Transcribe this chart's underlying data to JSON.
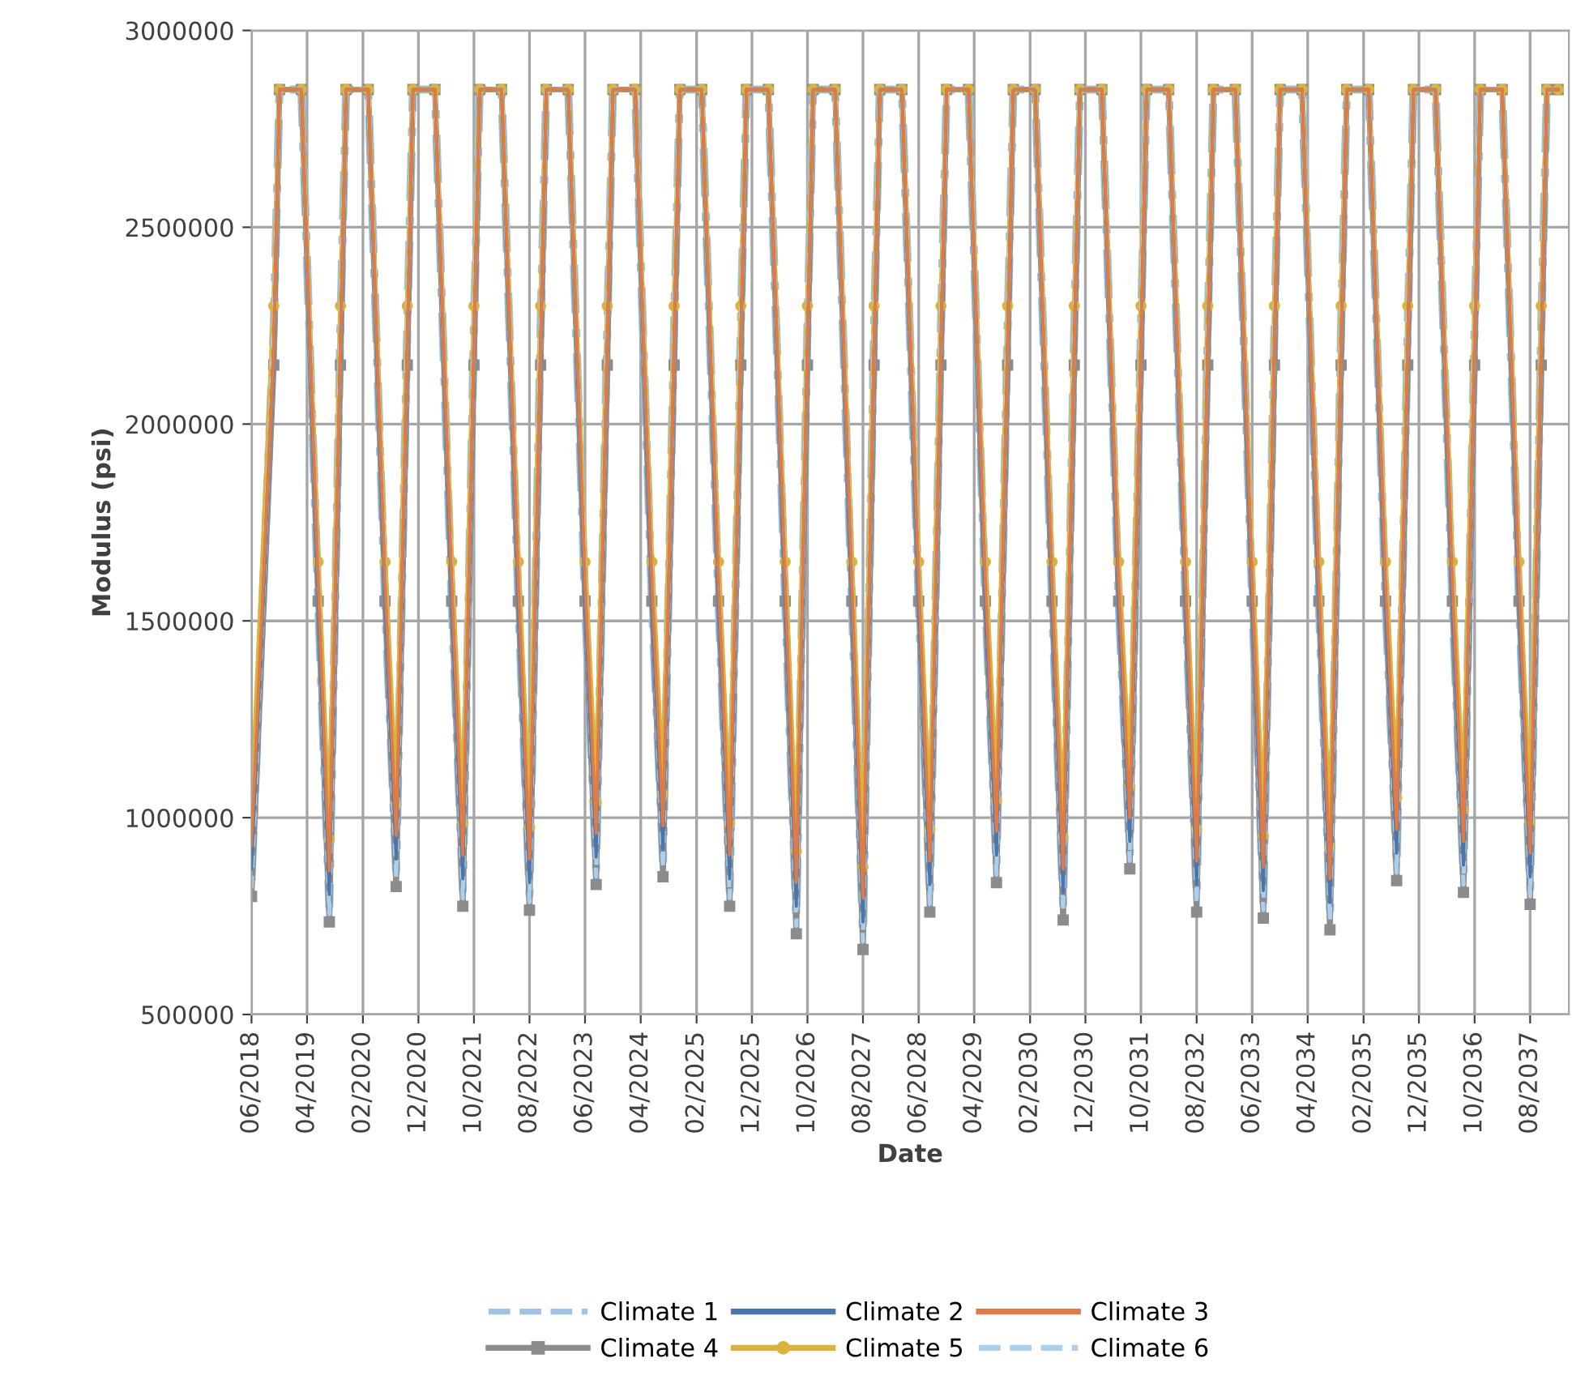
{
  "chart_data": {
    "type": "line",
    "xlabel": "Date",
    "ylabel": "Modulus (psi)",
    "x": [
      "2018-06",
      "2018-10",
      "2018-11",
      "2019-03",
      "2019-06",
      "2019-08",
      "2019-10",
      "2019-11",
      "2020-03",
      "2020-06",
      "2020-08",
      "2020-10",
      "2020-11",
      "2021-03",
      "2021-06",
      "2021-08",
      "2021-10",
      "2021-11",
      "2022-03",
      "2022-06",
      "2022-08",
      "2022-10",
      "2022-11",
      "2023-03",
      "2023-06",
      "2023-08",
      "2023-10",
      "2023-11",
      "2024-03",
      "2024-06",
      "2024-08",
      "2024-10",
      "2024-11",
      "2025-03",
      "2025-06",
      "2025-08",
      "2025-10",
      "2025-11",
      "2026-03",
      "2026-06",
      "2026-08",
      "2026-10",
      "2026-11",
      "2027-03",
      "2027-06",
      "2027-08",
      "2027-10",
      "2027-11",
      "2028-03",
      "2028-06",
      "2028-08",
      "2028-10",
      "2028-11",
      "2029-03",
      "2029-06",
      "2029-08",
      "2029-10",
      "2029-11",
      "2030-03",
      "2030-06",
      "2030-08",
      "2030-10",
      "2030-11",
      "2031-03",
      "2031-06",
      "2031-08",
      "2031-10",
      "2031-11",
      "2032-03",
      "2032-06",
      "2032-08",
      "2032-10",
      "2032-11",
      "2033-03",
      "2033-06",
      "2033-08",
      "2033-10",
      "2033-11",
      "2034-03",
      "2034-06",
      "2034-08",
      "2034-10",
      "2034-11",
      "2035-03",
      "2035-06",
      "2035-08",
      "2035-10",
      "2035-11",
      "2036-03",
      "2036-06",
      "2036-08",
      "2036-10",
      "2036-11",
      "2037-03",
      "2037-06",
      "2037-08",
      "2037-10",
      "2037-11",
      "2038-01"
    ],
    "series": [
      {
        "name": "Climate 1",
        "color": "#9dc3e6",
        "line_style": "dashdot",
        "marker": "none",
        "values": [
          840000,
          2250000,
          2850000,
          2850000,
          1550000,
          775000,
          2250000,
          2850000,
          2850000,
          1550000,
          865000,
          2250000,
          2850000,
          2850000,
          1550000,
          815000,
          2250000,
          2850000,
          2850000,
          1550000,
          805000,
          2250000,
          2850000,
          2850000,
          1550000,
          870000,
          2250000,
          2850000,
          2850000,
          1550000,
          890000,
          2250000,
          2850000,
          2850000,
          1550000,
          815000,
          2250000,
          2850000,
          2850000,
          1550000,
          745000,
          2250000,
          2850000,
          2850000,
          1550000,
          705000,
          2250000,
          2850000,
          2850000,
          1550000,
          800000,
          2250000,
          2850000,
          2850000,
          1550000,
          875000,
          2250000,
          2850000,
          2850000,
          1550000,
          780000,
          2250000,
          2850000,
          2850000,
          1550000,
          910000,
          2250000,
          2850000,
          2850000,
          1550000,
          800000,
          2250000,
          2850000,
          2850000,
          1550000,
          785000,
          2250000,
          2850000,
          2850000,
          1550000,
          755000,
          2250000,
          2850000,
          2850000,
          1550000,
          880000,
          2250000,
          2850000,
          2850000,
          1550000,
          850000,
          2250000,
          2850000,
          2850000,
          1550000,
          820000,
          2250000,
          2850000,
          2850000
        ]
      },
      {
        "name": "Climate 2",
        "color": "#4a76b0",
        "line_style": "solid",
        "marker": "none",
        "values": [
          870000,
          2200000,
          2850000,
          2850000,
          1550000,
          805000,
          2200000,
          2850000,
          2850000,
          1550000,
          895000,
          2200000,
          2850000,
          2850000,
          1550000,
          845000,
          2200000,
          2850000,
          2850000,
          1550000,
          835000,
          2200000,
          2850000,
          2850000,
          1550000,
          900000,
          2200000,
          2850000,
          2850000,
          1550000,
          920000,
          2200000,
          2850000,
          2850000,
          1550000,
          845000,
          2200000,
          2850000,
          2850000,
          1550000,
          775000,
          2200000,
          2850000,
          2850000,
          1550000,
          735000,
          2200000,
          2850000,
          2850000,
          1550000,
          830000,
          2200000,
          2850000,
          2850000,
          1550000,
          905000,
          2200000,
          2850000,
          2850000,
          1550000,
          810000,
          2200000,
          2850000,
          2850000,
          1550000,
          940000,
          2200000,
          2850000,
          2850000,
          1550000,
          830000,
          2200000,
          2850000,
          2850000,
          1550000,
          815000,
          2200000,
          2850000,
          2850000,
          1550000,
          785000,
          2200000,
          2850000,
          2850000,
          1550000,
          910000,
          2200000,
          2850000,
          2850000,
          1550000,
          880000,
          2200000,
          2850000,
          2850000,
          1550000,
          850000,
          2200000,
          2850000,
          2850000
        ]
      },
      {
        "name": "Climate 3",
        "color": "#e07b45",
        "line_style": "solid",
        "marker": "none",
        "values": [
          930000,
          2200000,
          2850000,
          2850000,
          1600000,
          865000,
          2200000,
          2850000,
          2850000,
          1600000,
          955000,
          2200000,
          2850000,
          2850000,
          1600000,
          905000,
          2200000,
          2850000,
          2850000,
          1600000,
          895000,
          2200000,
          2850000,
          2850000,
          1600000,
          960000,
          2200000,
          2850000,
          2850000,
          1600000,
          980000,
          2200000,
          2850000,
          2850000,
          1600000,
          905000,
          2200000,
          2850000,
          2850000,
          1600000,
          835000,
          2200000,
          2850000,
          2850000,
          1600000,
          795000,
          2200000,
          2850000,
          2850000,
          1600000,
          890000,
          2200000,
          2850000,
          2850000,
          1600000,
          965000,
          2200000,
          2850000,
          2850000,
          1600000,
          870000,
          2200000,
          2850000,
          2850000,
          1600000,
          1000000,
          2200000,
          2850000,
          2850000,
          1600000,
          890000,
          2200000,
          2850000,
          2850000,
          1600000,
          875000,
          2200000,
          2850000,
          2850000,
          1600000,
          845000,
          2200000,
          2850000,
          2850000,
          1600000,
          970000,
          2200000,
          2850000,
          2850000,
          1600000,
          940000,
          2200000,
          2850000,
          2850000,
          1600000,
          910000,
          2200000,
          2850000,
          2850000
        ]
      },
      {
        "name": "Climate 4",
        "color": "#8c8c8c",
        "line_style": "solid",
        "marker": "square",
        "values": [
          800000,
          2150000,
          2850000,
          2850000,
          1550000,
          735000,
          2150000,
          2850000,
          2850000,
          1550000,
          825000,
          2150000,
          2850000,
          2850000,
          1550000,
          775000,
          2150000,
          2850000,
          2850000,
          1550000,
          765000,
          2150000,
          2850000,
          2850000,
          1550000,
          830000,
          2150000,
          2850000,
          2850000,
          1550000,
          850000,
          2150000,
          2850000,
          2850000,
          1550000,
          775000,
          2150000,
          2850000,
          2850000,
          1550000,
          705000,
          2150000,
          2850000,
          2850000,
          1550000,
          665000,
          2150000,
          2850000,
          2850000,
          1550000,
          760000,
          2150000,
          2850000,
          2850000,
          1550000,
          835000,
          2150000,
          2850000,
          2850000,
          1550000,
          740000,
          2150000,
          2850000,
          2850000,
          1550000,
          870000,
          2150000,
          2850000,
          2850000,
          1550000,
          760000,
          2150000,
          2850000,
          2850000,
          1550000,
          745000,
          2150000,
          2850000,
          2850000,
          1550000,
          715000,
          2150000,
          2850000,
          2850000,
          1550000,
          840000,
          2150000,
          2850000,
          2850000,
          1550000,
          810000,
          2150000,
          2850000,
          2850000,
          1550000,
          780000,
          2150000,
          2850000,
          2850000
        ]
      },
      {
        "name": "Climate 5",
        "color": "#dcb33a",
        "line_style": "solid",
        "marker": "circle",
        "values": [
          1010000,
          2300000,
          2850000,
          2850000,
          1650000,
          945000,
          2300000,
          2850000,
          2850000,
          1650000,
          1035000,
          2300000,
          2850000,
          2850000,
          1650000,
          985000,
          2300000,
          2850000,
          2850000,
          1650000,
          975000,
          2300000,
          2850000,
          2850000,
          1650000,
          1040000,
          2300000,
          2850000,
          2850000,
          1650000,
          1060000,
          2300000,
          2850000,
          2850000,
          1650000,
          985000,
          2300000,
          2850000,
          2850000,
          1650000,
          915000,
          2300000,
          2850000,
          2850000,
          1650000,
          875000,
          2300000,
          2850000,
          2850000,
          1650000,
          970000,
          2300000,
          2850000,
          2850000,
          1650000,
          1045000,
          2300000,
          2850000,
          2850000,
          1650000,
          950000,
          2300000,
          2850000,
          2850000,
          1650000,
          1080000,
          2300000,
          2850000,
          2850000,
          1650000,
          970000,
          2300000,
          2850000,
          2850000,
          1650000,
          955000,
          2300000,
          2850000,
          2850000,
          1650000,
          925000,
          2300000,
          2850000,
          2850000,
          1650000,
          1050000,
          2300000,
          2850000,
          2850000,
          1650000,
          1020000,
          2300000,
          2850000,
          2850000,
          1650000,
          990000,
          2300000,
          2850000,
          2850000
        ]
      },
      {
        "name": "Climate 6",
        "color": "#a9d0ee",
        "line_style": "dashed",
        "marker": "none",
        "values": [
          820000,
          2250000,
          2850000,
          2850000,
          1600000,
          755000,
          2250000,
          2850000,
          2850000,
          1600000,
          845000,
          2250000,
          2850000,
          2850000,
          1600000,
          795000,
          2250000,
          2850000,
          2850000,
          1600000,
          785000,
          2250000,
          2850000,
          2850000,
          1600000,
          850000,
          2250000,
          2850000,
          2850000,
          1600000,
          870000,
          2250000,
          2850000,
          2850000,
          1600000,
          795000,
          2250000,
          2850000,
          2850000,
          1600000,
          725000,
          2250000,
          2850000,
          2850000,
          1600000,
          685000,
          2250000,
          2850000,
          2850000,
          1600000,
          780000,
          2250000,
          2850000,
          2850000,
          1600000,
          855000,
          2250000,
          2850000,
          2850000,
          1600000,
          760000,
          2250000,
          2850000,
          2850000,
          1600000,
          890000,
          2250000,
          2850000,
          2850000,
          1600000,
          780000,
          2250000,
          2850000,
          2850000,
          1600000,
          765000,
          2250000,
          2850000,
          2850000,
          1600000,
          735000,
          2250000,
          2850000,
          2850000,
          1600000,
          860000,
          2250000,
          2850000,
          2850000,
          1600000,
          830000,
          2250000,
          2850000,
          2850000,
          1600000,
          800000,
          2250000,
          2850000,
          2850000
        ]
      }
    ],
    "xlim": [
      "2018-06",
      "2038-03"
    ],
    "xticks": [
      {
        "value": "2018-06",
        "label": "06/2018"
      },
      {
        "value": "2019-04",
        "label": "04/2019"
      },
      {
        "value": "2020-02",
        "label": "02/2020"
      },
      {
        "value": "2020-12",
        "label": "12/2020"
      },
      {
        "value": "2021-10",
        "label": "10/2021"
      },
      {
        "value": "2022-08",
        "label": "08/2022"
      },
      {
        "value": "2023-06",
        "label": "06/2023"
      },
      {
        "value": "2024-04",
        "label": "04/2024"
      },
      {
        "value": "2025-02",
        "label": "02/2025"
      },
      {
        "value": "2025-12",
        "label": "12/2025"
      },
      {
        "value": "2026-10",
        "label": "10/2026"
      },
      {
        "value": "2027-08",
        "label": "08/2027"
      },
      {
        "value": "2028-06",
        "label": "06/2028"
      },
      {
        "value": "2029-04",
        "label": "04/2029"
      },
      {
        "value": "2030-02",
        "label": "02/2030"
      },
      {
        "value": "2030-12",
        "label": "12/2030"
      },
      {
        "value": "2031-10",
        "label": "10/2031"
      },
      {
        "value": "2032-08",
        "label": "08/2032"
      },
      {
        "value": "2033-06",
        "label": "06/2033"
      },
      {
        "value": "2034-04",
        "label": "04/2034"
      },
      {
        "value": "2035-02",
        "label": "02/2035"
      },
      {
        "value": "2035-12",
        "label": "12/2035"
      },
      {
        "value": "2036-10",
        "label": "10/2036"
      },
      {
        "value": "2037-08",
        "label": "08/2037"
      }
    ],
    "ylim": [
      500000,
      3000000
    ],
    "yticks": [
      500000,
      1000000,
      1500000,
      2000000,
      2500000,
      3000000
    ],
    "grid": true,
    "legend": "bottom"
  }
}
